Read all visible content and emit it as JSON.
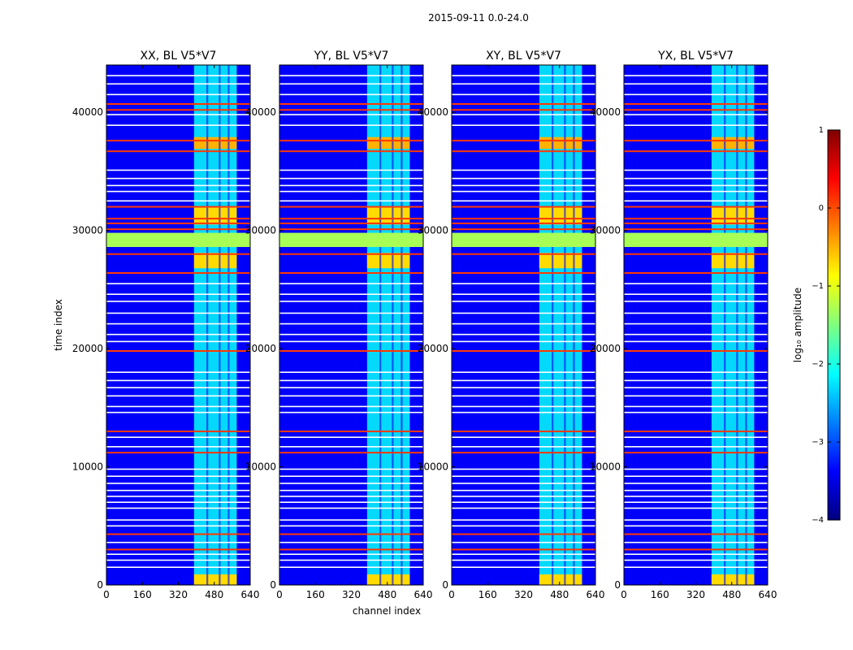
{
  "figure_title": "2015-09-11 0.0-24.0",
  "chart_data": {
    "type": "heatmap",
    "title": "2015-09-11 0.0-24.0",
    "xlabel": "channel index",
    "ylabel": "time index",
    "panels": [
      {
        "title": "XX, BL V5*V7"
      },
      {
        "title": "YY, BL V5*V7"
      },
      {
        "title": "XY, BL V5*V7"
      },
      {
        "title": "YX, BL V5*V7"
      }
    ],
    "xlim": [
      0,
      640
    ],
    "ylim": [
      0,
      44000
    ],
    "x_ticks": [
      0,
      160,
      320,
      480,
      640
    ],
    "x_tick_labels": [
      "0",
      "160",
      "320",
      "480",
      "640"
    ],
    "y_ticks": [
      0,
      10000,
      20000,
      30000,
      40000
    ],
    "y_tick_labels": [
      "0",
      "10000",
      "20000",
      "30000",
      "40000"
    ],
    "colorbar": {
      "label": "log₁₀ amplitude",
      "range": [
        -4,
        1
      ],
      "ticks": [
        1,
        0,
        -1,
        -2,
        -3,
        -4
      ],
      "tick_labels": [
        "1",
        "0",
        "−1",
        "−2",
        "−3",
        "−4"
      ],
      "colormap": "jet",
      "colors": [
        "#00007f",
        "#0000ff",
        "#007fff",
        "#00ffff",
        "#7fff7f",
        "#ffff00",
        "#ff7f00",
        "#ff0000",
        "#7f0000"
      ]
    },
    "background_level": -3.4,
    "band_channel_range": [
      390,
      580
    ],
    "band_level": -2.1,
    "flagged_time_range": [
      28600,
      29800
    ],
    "flagged_level": -1.3,
    "strong_time_ranges": [
      {
        "t0": 36900,
        "t1": 37900,
        "level": -0.5
      },
      {
        "t0": 30500,
        "t1": 32000,
        "level": -0.7
      },
      {
        "t0": 26800,
        "t1": 28100,
        "level": -0.7
      },
      {
        "t0": 0,
        "t1": 900,
        "level": -0.7
      }
    ],
    "rfi_lines_red": [
      40700,
      40200,
      37600,
      36700,
      32000,
      31000,
      30600,
      30100,
      28000,
      26400,
      19800,
      13000,
      11200,
      4300,
      3000
    ],
    "rfi_lines_white": [
      43100,
      42400,
      41500,
      39800,
      38900,
      35100,
      34400,
      33800,
      33300,
      32500,
      25500,
      24600,
      24000,
      23000,
      22100,
      21200,
      20600,
      18000,
      17300,
      16700,
      16000,
      15100,
      14600,
      12500,
      11700,
      9800,
      9200,
      8600,
      8000,
      7500,
      7000,
      6500,
      5500,
      5000,
      3600,
      2600,
      2100,
      1500
    ]
  }
}
